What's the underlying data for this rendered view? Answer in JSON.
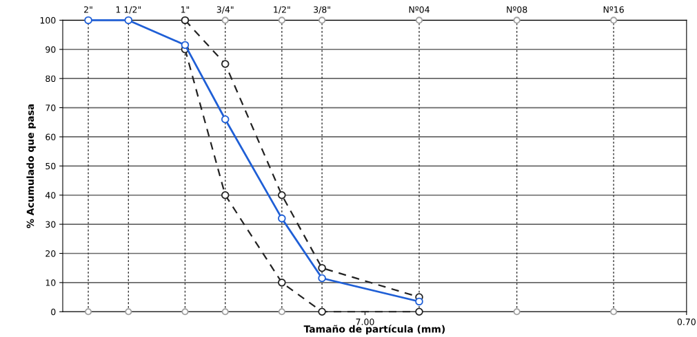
{
  "chart_data": {
    "type": "line",
    "xlabel": "Tamaño de partícula (mm)",
    "ylabel": "% Acumulado que pasa",
    "log": "x",
    "xlim": [
      61,
      0.7
    ],
    "xticks": [
      {
        "value": 7,
        "label": "7.00"
      },
      {
        "value": 0.7,
        "label": "0.70"
      }
    ],
    "ref_lines": [
      {
        "axis": "x",
        "value": 50.8,
        "line_style": "dotted"
      },
      {
        "axis": "x",
        "value": 38.1,
        "line_style": "dotted"
      },
      {
        "axis": "x",
        "value": 25.4,
        "line_style": "dotted"
      },
      {
        "axis": "x",
        "value": 19.05,
        "line_style": "dotted"
      },
      {
        "axis": "x",
        "value": 12.7,
        "line_style": "dotted"
      },
      {
        "axis": "x",
        "value": 9.525,
        "line_style": "dotted"
      },
      {
        "axis": "x",
        "value": 4.75,
        "line_style": "dotted"
      },
      {
        "axis": "x",
        "value": 2.36,
        "line_style": "dotted"
      },
      {
        "axis": "x",
        "value": 1.18,
        "line_style": "dotted"
      }
    ],
    "annotations": [
      {
        "text": "2\"",
        "x": 50.8,
        "y": 100
      },
      {
        "text": "1 1/2\"",
        "x": 38.1,
        "y": 100
      },
      {
        "text": "1\"",
        "x": 25.4,
        "y": 100
      },
      {
        "text": "3/4\"",
        "x": 19.05,
        "y": 100
      },
      {
        "text": "1/2\"",
        "x": 12.7,
        "y": 100
      },
      {
        "text": "3/8\"",
        "x": 9.525,
        "y": 100
      },
      {
        "text": "Nº04",
        "x": 4.75,
        "y": 100
      },
      {
        "text": "Nº08",
        "x": 2.36,
        "y": 100
      },
      {
        "text": "Nº16",
        "x": 1.18,
        "y": 100
      }
    ],
    "ylim": [
      0,
      100
    ],
    "yticks": [
      0,
      10,
      20,
      30,
      40,
      50,
      60,
      70,
      80,
      90,
      100
    ],
    "grid": "y",
    "legend": false,
    "marker": "circle",
    "series": [
      {
        "type": "scatter",
        "color": "#a0a0a0",
        "x": [
          50.8,
          38.1,
          25.4,
          19.05,
          12.7,
          2.36,
          1.18
        ],
        "values": [
          0,
          0,
          0,
          0,
          0,
          0,
          0
        ]
      },
      {
        "type": "scatter",
        "color": "#a0a0a0",
        "x": [
          19.05,
          12.7,
          9.525,
          4.75,
          2.36,
          1.18
        ],
        "values": [
          100,
          100,
          100,
          100,
          100,
          100
        ]
      },
      {
        "type": "line",
        "color": "#222222",
        "line_style": "dashed",
        "x": [
          25.4,
          19.05,
          12.7,
          9.525,
          4.75
        ],
        "values": [
          100,
          85,
          40,
          15,
          5
        ]
      },
      {
        "type": "line",
        "color": "#222222",
        "line_style": "dashed",
        "x": [
          25.4,
          19.05,
          12.7,
          9.525,
          4.75
        ],
        "values": [
          90,
          40,
          10,
          0,
          0
        ]
      },
      {
        "color": "#1f5fd6",
        "line_style": "solid",
        "x": [
          50.8,
          38.1,
          25.4,
          19.05,
          12.7,
          9.525,
          4.75
        ],
        "values": [
          100,
          100,
          91.5,
          66,
          32,
          11.5,
          3.5
        ]
      }
    ]
  }
}
